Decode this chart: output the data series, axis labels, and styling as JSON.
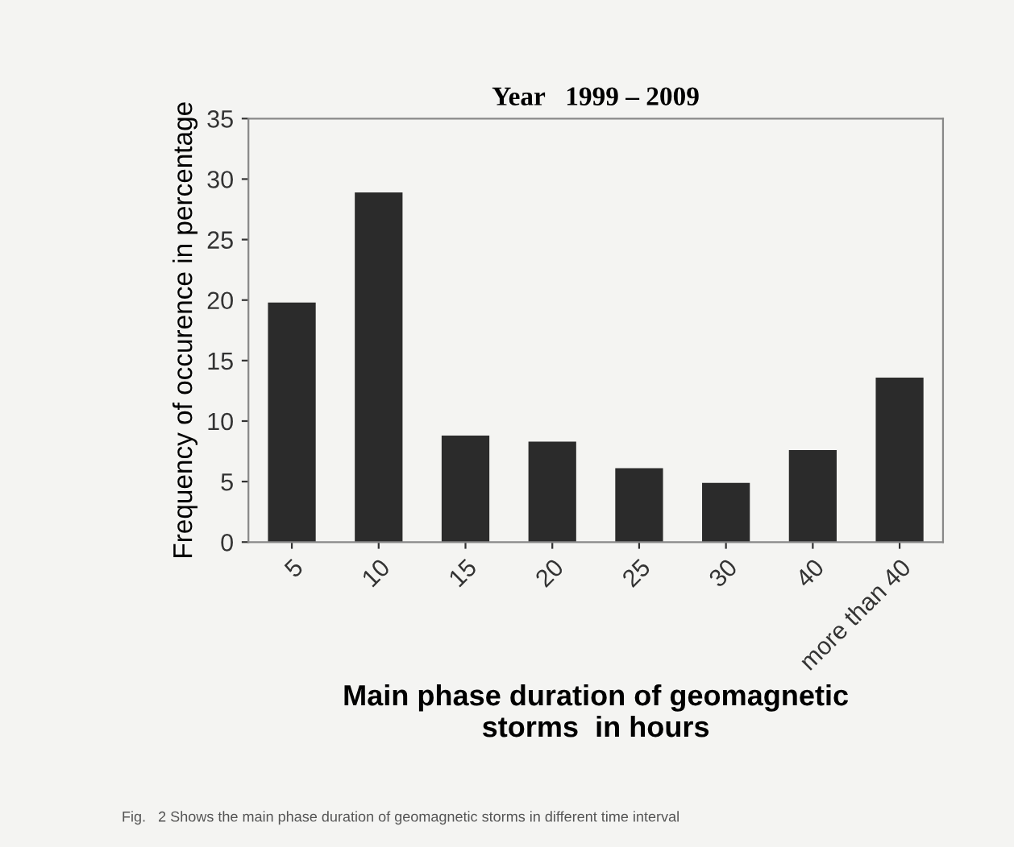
{
  "chart_data": {
    "type": "bar",
    "title": "Year   1999 – 2009",
    "xlabel": "Main phase duration of geomagnetic\nstorms  in hours",
    "ylabel": "Frequency of occurence in percentage",
    "categories": [
      "5",
      "10",
      "15",
      "20",
      "25",
      "30",
      "40",
      "more than 40"
    ],
    "values": [
      19.8,
      28.9,
      8.8,
      8.3,
      6.1,
      4.9,
      7.6,
      13.6
    ],
    "color": "#2b2b2b",
    "ylim": [
      0,
      35
    ],
    "yticks": [
      0,
      5,
      10,
      15,
      20,
      25,
      30,
      35
    ],
    "grid": false,
    "legend": false,
    "annotations": [
      "Fig.   2 Shows the main phase duration of geomagnetic storms in different time interval"
    ]
  }
}
